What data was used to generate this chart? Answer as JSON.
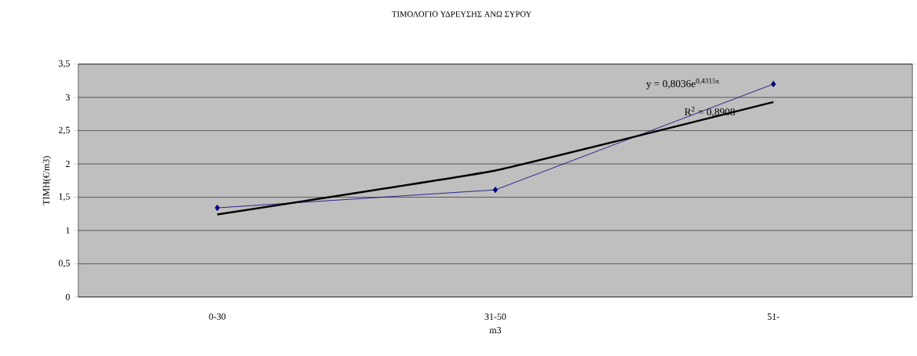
{
  "chart_data": {
    "type": "line",
    "title": "ΤΙΜΟΛΟΓΙΟ ΥΔΡΕΥΣΗΣ ΑΝΩ ΣΥΡΟΥ",
    "xlabel": "m3",
    "ylabel": "ΤΙΜΗ(€/m3)",
    "categories": [
      "0-30",
      "31-50",
      "51-"
    ],
    "series": [
      {
        "color": "#000080",
        "values": [
          1.34,
          1.61,
          3.2
        ]
      },
      {
        "type": "line",
        "marker": "none",
        "color": "#000000",
        "values": [
          1.24,
          1.9,
          2.93
        ]
      }
    ],
    "ylim": [
      0,
      3.5
    ],
    "yticks": [
      {
        "value": 0,
        "label": "0"
      },
      {
        "value": 0.5,
        "label": "0,5"
      },
      {
        "value": 1,
        "label": "1"
      },
      {
        "value": 1.5,
        "label": "1,5"
      },
      {
        "value": 2,
        "label": "2"
      },
      {
        "value": 2.5,
        "label": "2,5"
      },
      {
        "value": 3,
        "label": "3"
      },
      {
        "value": 3.5,
        "label": "3,5"
      }
    ],
    "grid": "y",
    "marker": "diamond",
    "annotations": [
      "y = 0,8036e$^{0,4315x}$",
      "R$^{2}$ = 0,8908"
    ]
  }
}
